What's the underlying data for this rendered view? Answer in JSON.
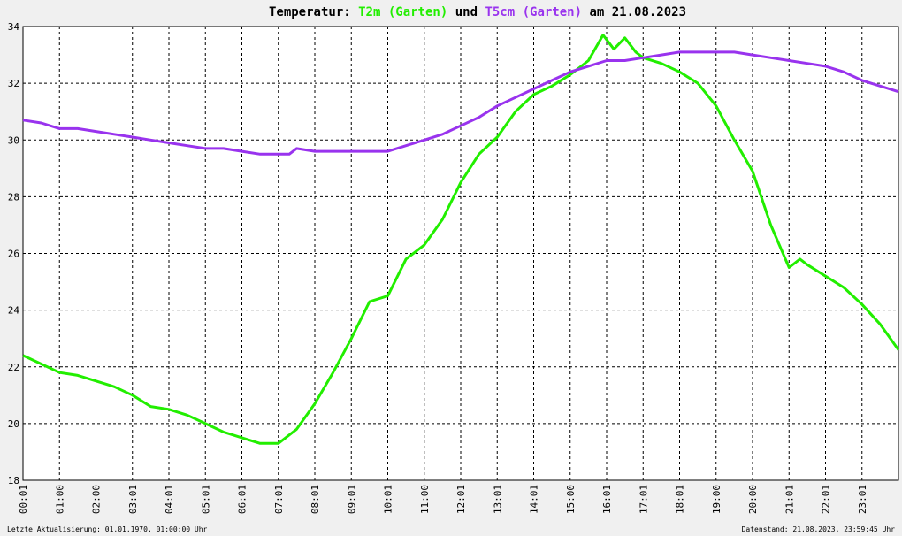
{
  "title": {
    "prefix": "Temperatur: ",
    "series1": "T2m (Garten)",
    "mid": " und ",
    "series2": "T5cm (Garten)",
    "suffix": " am 21.08.2023"
  },
  "footer": {
    "left": "Letzte Aktualisierung: 01.01.1970, 01:00:00 Uhr",
    "right": "Datenstand: 21.08.2023, 23:59:45 Uhr"
  },
  "colors": {
    "t2m": "#22ee00",
    "t5cm": "#9933ee",
    "plot_bg": "#ffffff",
    "page_bg": "#f0f0f0"
  },
  "chart_data": {
    "type": "line",
    "title": "Temperatur: T2m (Garten) und T5cm (Garten) am 21.08.2023",
    "xlabel": "",
    "ylabel": "",
    "xlim": [
      0,
      24
    ],
    "ylim": [
      18,
      34
    ],
    "grid": true,
    "x_tick_labels": [
      "00:01",
      "01:00",
      "02:00",
      "03:01",
      "04:01",
      "05:01",
      "06:01",
      "07:01",
      "08:01",
      "09:01",
      "10:01",
      "11:00",
      "12:01",
      "13:01",
      "14:01",
      "15:00",
      "16:01",
      "17:01",
      "18:01",
      "19:00",
      "20:00",
      "21:01",
      "22:01",
      "23:01"
    ],
    "y_ticks": [
      18,
      20,
      22,
      24,
      26,
      28,
      30,
      32,
      34
    ],
    "series": [
      {
        "name": "T2m (Garten)",
        "x": [
          0,
          0.5,
          1,
          1.5,
          2,
          2.5,
          3,
          3.5,
          4,
          4.5,
          5,
          5.5,
          6,
          6.5,
          7,
          7.5,
          8,
          8.5,
          9,
          9.5,
          10,
          10.5,
          11,
          11.5,
          12,
          12.5,
          13,
          13.5,
          14,
          14.5,
          15,
          15.5,
          15.9,
          16.2,
          16.5,
          16.8,
          17,
          17.5,
          18,
          18.5,
          19,
          19.5,
          20,
          20.5,
          21,
          21.3,
          21.5,
          22,
          22.5,
          23,
          23.5,
          24
        ],
        "y": [
          22.4,
          22.1,
          21.8,
          21.7,
          21.5,
          21.3,
          21.0,
          20.6,
          20.5,
          20.3,
          20.0,
          19.7,
          19.5,
          19.3,
          19.3,
          19.8,
          20.7,
          21.8,
          23.0,
          24.3,
          24.5,
          25.8,
          26.3,
          27.2,
          28.5,
          29.5,
          30.1,
          31.0,
          31.6,
          31.9,
          32.3,
          32.8,
          33.7,
          33.2,
          33.6,
          33.1,
          32.9,
          32.7,
          32.4,
          32.0,
          31.2,
          30.0,
          28.9,
          27.0,
          25.5,
          25.8,
          25.6,
          25.2,
          24.8,
          24.2,
          23.5,
          22.6
        ]
      },
      {
        "name": "T5cm (Garten)",
        "x": [
          0,
          0.5,
          1,
          1.5,
          2,
          2.5,
          3,
          3.5,
          4,
          4.5,
          5,
          5.5,
          6,
          6.5,
          7,
          7.3,
          7.5,
          8,
          8.5,
          9,
          9.5,
          10,
          10.5,
          11,
          11.5,
          12,
          12.5,
          13,
          13.5,
          14,
          14.5,
          15,
          15.5,
          16,
          16.5,
          17,
          17.5,
          18,
          18.5,
          19,
          19.5,
          20,
          20.5,
          21,
          21.5,
          22,
          22.5,
          23,
          23.5,
          24
        ],
        "y": [
          30.7,
          30.6,
          30.4,
          30.4,
          30.3,
          30.2,
          30.1,
          30.0,
          29.9,
          29.8,
          29.7,
          29.7,
          29.6,
          29.5,
          29.5,
          29.5,
          29.7,
          29.6,
          29.6,
          29.6,
          29.6,
          29.6,
          29.8,
          30.0,
          30.2,
          30.5,
          30.8,
          31.2,
          31.5,
          31.8,
          32.1,
          32.4,
          32.6,
          32.8,
          32.8,
          32.9,
          33.0,
          33.1,
          33.1,
          33.1,
          33.1,
          33.0,
          32.9,
          32.8,
          32.7,
          32.6,
          32.4,
          32.1,
          31.9,
          31.7
        ]
      }
    ]
  }
}
